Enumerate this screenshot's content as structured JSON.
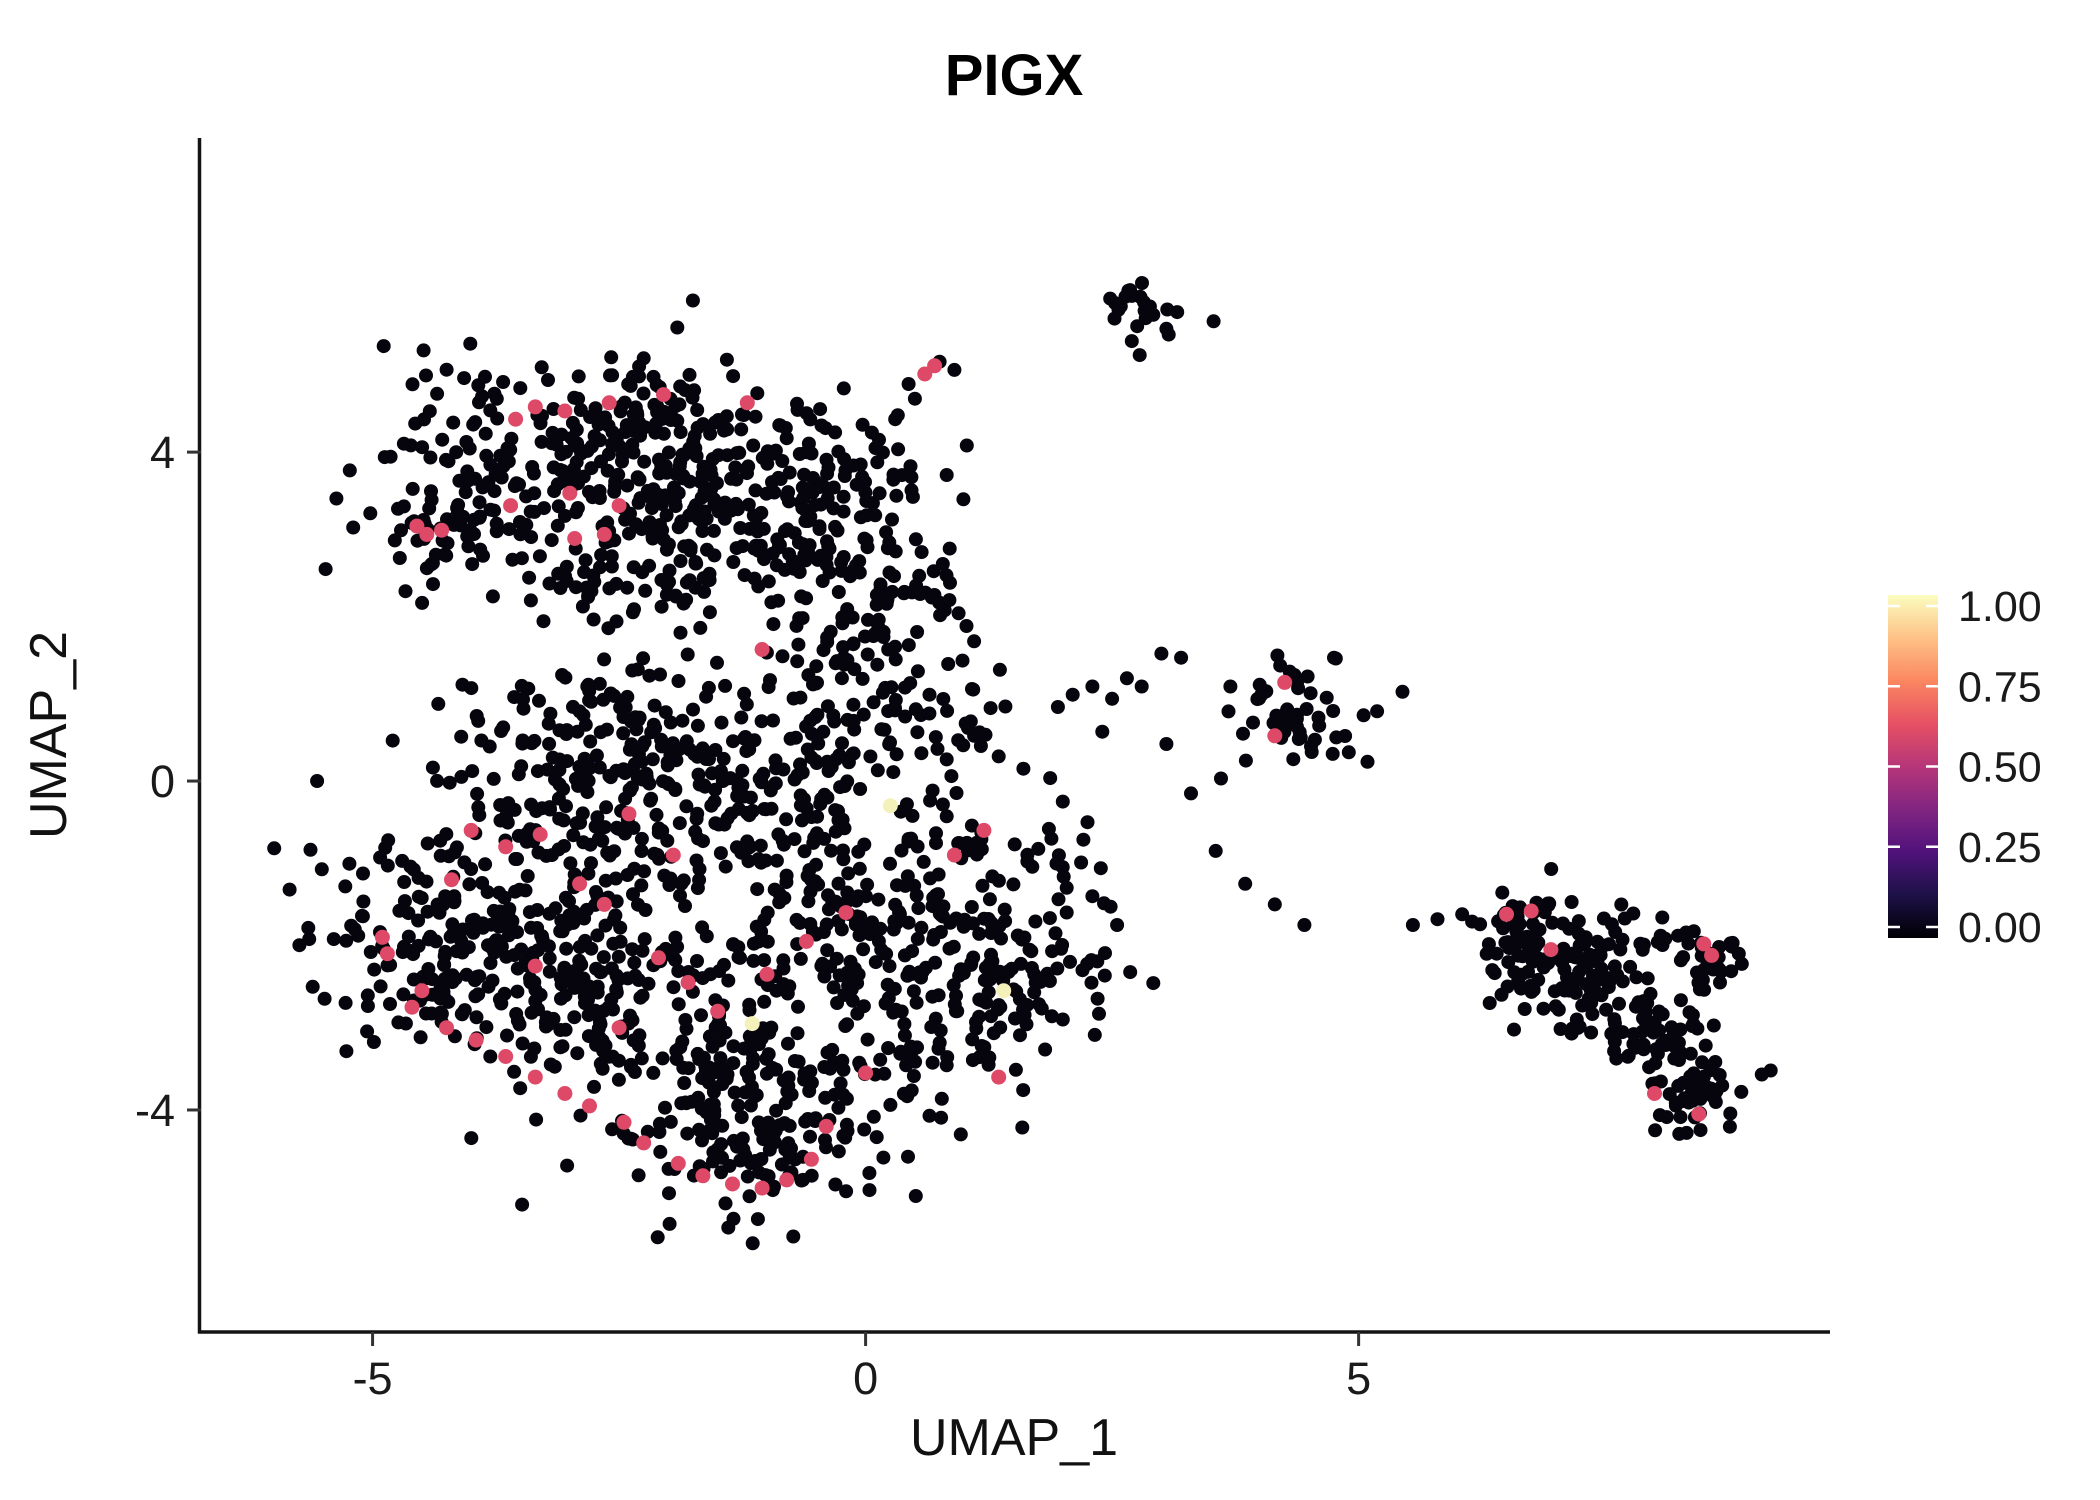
{
  "chart_data": {
    "type": "scatter",
    "title": "PIGX",
    "xlabel": "UMAP_1",
    "ylabel": "UMAP_2",
    "xlim": [
      -6.74,
      9.76
    ],
    "ylim": [
      -6.7,
      7.82
    ],
    "x_ticks": [
      -5,
      0,
      5
    ],
    "x_tick_labels": [
      "-5",
      "0",
      "5"
    ],
    "y_ticks": [
      -4,
      0,
      4
    ],
    "y_tick_labels": [
      "-4",
      "0",
      "4"
    ],
    "grid": false,
    "point_colors": {
      "zero_expression": "#06040d",
      "mid_expression": "#DE4968",
      "high_expression": "#F5F1BB"
    },
    "legend": {
      "position": "right",
      "tick_values": [
        1.0,
        0.75,
        0.5,
        0.25,
        0.0
      ],
      "tick_labels": [
        "1.00",
        "0.75",
        "0.50",
        "0.25",
        "0.00"
      ],
      "gradient": [
        {
          "value": 0.0,
          "color": "#000004"
        },
        {
          "value": 0.125,
          "color": "#1D1147"
        },
        {
          "value": 0.25,
          "color": "#50127B"
        },
        {
          "value": 0.375,
          "color": "#812581"
        },
        {
          "value": 0.5,
          "color": "#B63679"
        },
        {
          "value": 0.625,
          "color": "#E65164"
        },
        {
          "value": 0.75,
          "color": "#FB8761"
        },
        {
          "value": 0.875,
          "color": "#FEC287"
        },
        {
          "value": 1.0,
          "color": "#FCFDBF"
        }
      ]
    },
    "clusters": [
      {
        "name": "upper-left-blob",
        "blobs": [
          [
            -3.5,
            3.9,
            0.75,
            130
          ],
          [
            -2.3,
            4.2,
            0.65,
            110
          ],
          [
            -1.3,
            3.6,
            0.6,
            95
          ],
          [
            -0.4,
            2.8,
            0.55,
            75
          ],
          [
            -4.25,
            3.1,
            0.4,
            45
          ],
          [
            -2.8,
            2.7,
            0.55,
            55
          ],
          [
            0.05,
            2.05,
            0.5,
            70
          ],
          [
            -0.2,
            3.7,
            0.5,
            55
          ],
          [
            -1.9,
            3.1,
            0.6,
            60
          ]
        ]
      },
      {
        "name": "main-lower-blob",
        "blobs": [
          [
            -3.9,
            -1.7,
            0.8,
            150
          ],
          [
            -2.6,
            -0.6,
            0.8,
            150
          ],
          [
            -2.9,
            -2.7,
            0.75,
            140
          ],
          [
            -1.6,
            -3.7,
            0.7,
            120
          ],
          [
            -0.6,
            -2.1,
            0.8,
            120
          ],
          [
            0.7,
            -1.3,
            0.7,
            110
          ],
          [
            1.5,
            -2.3,
            0.6,
            90
          ],
          [
            -4.5,
            -2.3,
            0.45,
            60
          ],
          [
            -1.1,
            -0.4,
            0.65,
            100
          ],
          [
            -0.9,
            -4.5,
            0.55,
            80
          ],
          [
            0.3,
            -3.4,
            0.6,
            80
          ],
          [
            -2.2,
            0.8,
            0.6,
            70
          ],
          [
            -3.3,
            0.3,
            0.5,
            50
          ],
          [
            0.5,
            0.9,
            0.5,
            50
          ],
          [
            -0.6,
            0.45,
            0.5,
            40
          ]
        ]
      },
      {
        "name": "top-small-cluster",
        "blobs": [
          [
            2.85,
            5.75,
            0.22,
            22
          ]
        ]
      },
      {
        "name": "right-mid-cluster",
        "blobs": [
          [
            4.35,
            0.85,
            0.42,
            48
          ]
        ]
      },
      {
        "name": "far-right-cluster",
        "blobs": [
          [
            6.6,
            -1.8,
            0.28,
            35
          ],
          [
            7.05,
            -2.05,
            0.3,
            45
          ],
          [
            7.5,
            -2.5,
            0.32,
            48
          ],
          [
            7.95,
            -3.0,
            0.32,
            48
          ],
          [
            8.3,
            -3.6,
            0.28,
            40
          ],
          [
            8.55,
            -2.15,
            0.22,
            26
          ],
          [
            7.85,
            -1.95,
            0.25,
            20
          ],
          [
            8.45,
            -3.95,
            0.2,
            18
          ],
          [
            6.85,
            -2.5,
            0.25,
            20
          ]
        ]
      }
    ],
    "single_points": [
      [
        0.5,
        4.65
      ],
      [
        0.3,
        4.4
      ],
      [
        0.1,
        4.05
      ],
      [
        -0.05,
        3.85
      ],
      [
        0.75,
        5.1
      ],
      [
        0.9,
        5.0
      ],
      [
        1.1,
        0.55
      ],
      [
        1.35,
        0.3
      ],
      [
        1.6,
        0.15
      ],
      [
        1.95,
        0.9
      ],
      [
        2.1,
        1.05
      ],
      [
        2.3,
        1.15
      ],
      [
        2.5,
        1.0
      ],
      [
        2.65,
        1.25
      ],
      [
        2.8,
        1.15
      ],
      [
        2.4,
        0.6
      ],
      [
        3.05,
        0.45
      ],
      [
        3.3,
        -0.15
      ],
      [
        3.55,
        -0.85
      ],
      [
        3.85,
        -1.25
      ],
      [
        4.15,
        -1.5
      ],
      [
        4.45,
        -1.75
      ],
      [
        3.0,
        1.55
      ],
      [
        3.2,
        1.5
      ],
      [
        5.55,
        -1.75
      ],
      [
        5.8,
        -1.68
      ],
      [
        6.05,
        -1.62
      ],
      [
        2.0,
        -0.25
      ],
      [
        2.25,
        -0.5
      ],
      [
        2.3,
        -1.4
      ],
      [
        2.55,
        -1.75
      ],
      [
        2.2,
        -2.3
      ],
      [
        2.0,
        -2.9
      ],
      [
        1.1,
        1.7
      ],
      [
        0.85,
        2.2
      ],
      [
        2.7,
        5.35
      ],
      [
        2.78,
        5.18
      ],
      [
        3.05,
        5.5
      ],
      [
        4.9,
        0.35
      ],
      [
        5.05,
        0.8
      ],
      [
        3.7,
        1.15
      ],
      [
        4.75,
        1.5
      ]
    ],
    "mid_expression_points": [
      [
        -4.55,
        3.1
      ],
      [
        -4.45,
        3.0
      ],
      [
        -4.3,
        3.05
      ],
      [
        -3.6,
        3.35
      ],
      [
        -2.95,
        2.95
      ],
      [
        -3.05,
        4.5
      ],
      [
        -3.35,
        4.55
      ],
      [
        -2.6,
        4.6
      ],
      [
        -2.05,
        4.7
      ],
      [
        -1.2,
        4.6
      ],
      [
        -3.0,
        3.5
      ],
      [
        -2.65,
        3.0
      ],
      [
        0.6,
        4.95
      ],
      [
        0.7,
        5.05
      ],
      [
        -3.55,
        4.4
      ],
      [
        -2.5,
        3.35
      ],
      [
        -1.05,
        1.6
      ],
      [
        -4.9,
        -1.9
      ],
      [
        -4.85,
        -2.1
      ],
      [
        -4.5,
        -2.55
      ],
      [
        -4.6,
        -2.75
      ],
      [
        -4.25,
        -3.0
      ],
      [
        -3.95,
        -3.15
      ],
      [
        -3.65,
        -3.35
      ],
      [
        -3.35,
        -3.6
      ],
      [
        -3.05,
        -3.8
      ],
      [
        -2.8,
        -3.95
      ],
      [
        -2.45,
        -4.15
      ],
      [
        -2.25,
        -4.4
      ],
      [
        -1.9,
        -4.65
      ],
      [
        -1.65,
        -4.8
      ],
      [
        -1.35,
        -4.9
      ],
      [
        -1.05,
        -4.95
      ],
      [
        -0.8,
        -4.85
      ],
      [
        -0.55,
        -4.6
      ],
      [
        -4.0,
        -0.6
      ],
      [
        -3.65,
        -0.8
      ],
      [
        -3.3,
        -0.65
      ],
      [
        -2.9,
        -1.25
      ],
      [
        -2.65,
        -1.5
      ],
      [
        -2.4,
        -0.4
      ],
      [
        -2.1,
        -2.15
      ],
      [
        -1.8,
        -2.45
      ],
      [
        -1.5,
        -2.8
      ],
      [
        -1.0,
        -2.35
      ],
      [
        -0.6,
        -1.95
      ],
      [
        -0.2,
        -1.6
      ],
      [
        0.9,
        -0.9
      ],
      [
        1.2,
        -0.6
      ],
      [
        -3.35,
        -2.25
      ],
      [
        -4.2,
        -1.2
      ],
      [
        0.0,
        -3.55
      ],
      [
        -0.4,
        -4.2
      ],
      [
        -2.5,
        -3.0
      ],
      [
        -1.95,
        -0.9
      ],
      [
        1.35,
        -3.6
      ],
      [
        4.25,
        1.2
      ],
      [
        4.15,
        0.55
      ],
      [
        6.5,
        -1.62
      ],
      [
        6.75,
        -1.58
      ],
      [
        8.5,
        -1.98
      ],
      [
        8.58,
        -2.12
      ],
      [
        8.0,
        -3.8
      ],
      [
        8.45,
        -4.05
      ],
      [
        6.95,
        -2.05
      ]
    ],
    "high_expression_points": [
      [
        0.25,
        -0.3
      ],
      [
        1.4,
        -2.55
      ],
      [
        -1.15,
        -2.95
      ]
    ]
  }
}
